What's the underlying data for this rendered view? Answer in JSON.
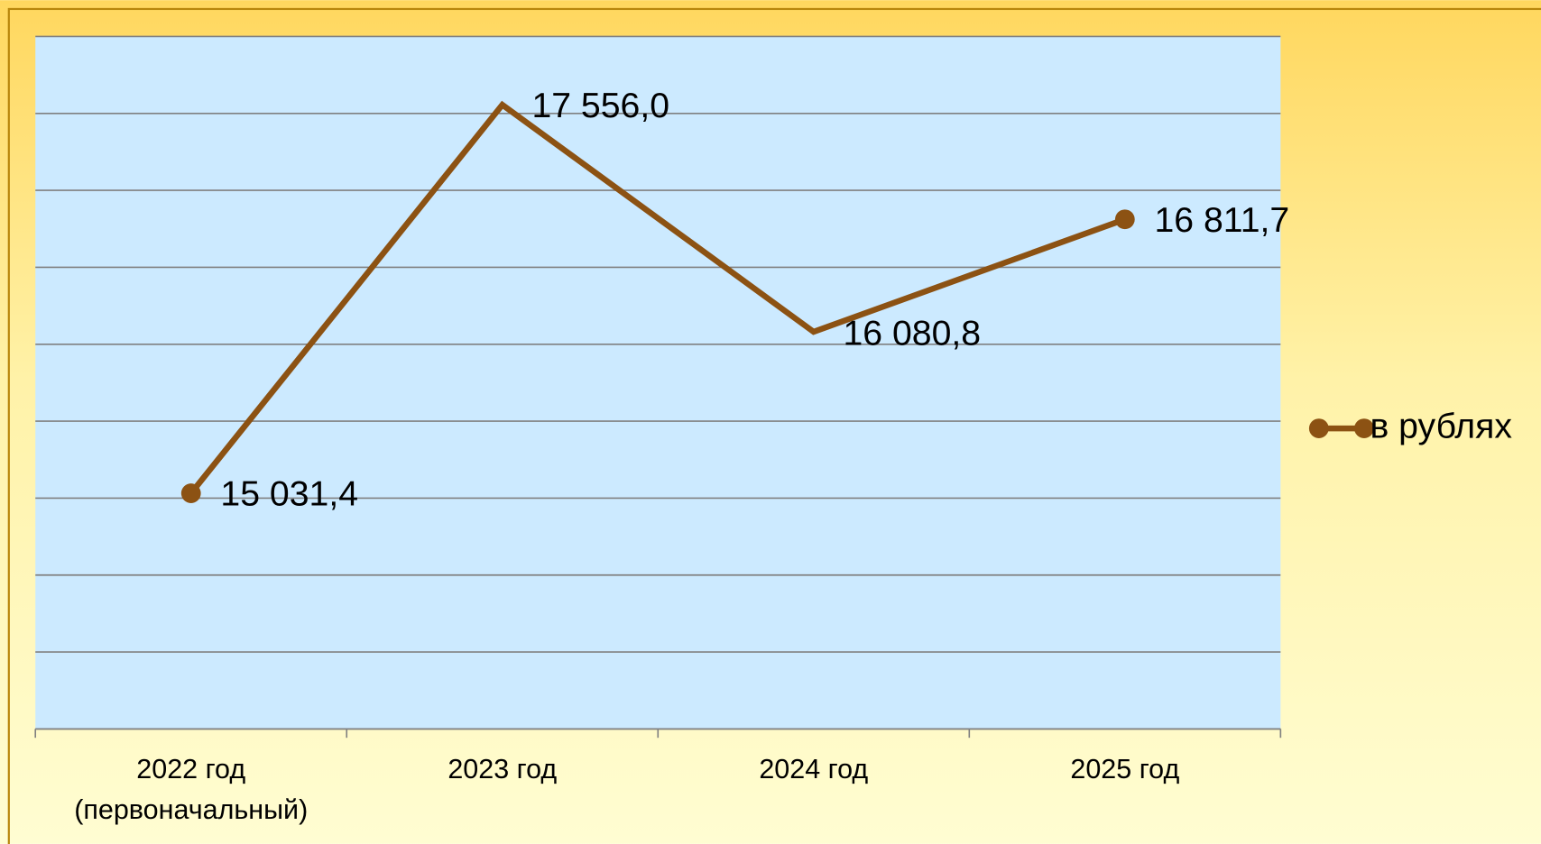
{
  "chart_data": {
    "type": "line",
    "categories": [
      "2022 год\n(первоначальный)",
      "2023 год",
      "2024 год",
      "2025 год"
    ],
    "series": [
      {
        "name": "в рублях",
        "color": "#8c5213",
        "values": [
          15031.4,
          17556.0,
          16080.8,
          16811.7
        ],
        "value_labels": [
          "15 031,4",
          "17 556,0",
          "16 080,8",
          "16 811,7"
        ]
      }
    ],
    "ylim": [
      13500,
      18000
    ],
    "yticks": [
      13500,
      14000,
      14500,
      15000,
      15500,
      16000,
      16500,
      17000,
      17500,
      18000
    ],
    "grid": true,
    "legend": "right"
  }
}
